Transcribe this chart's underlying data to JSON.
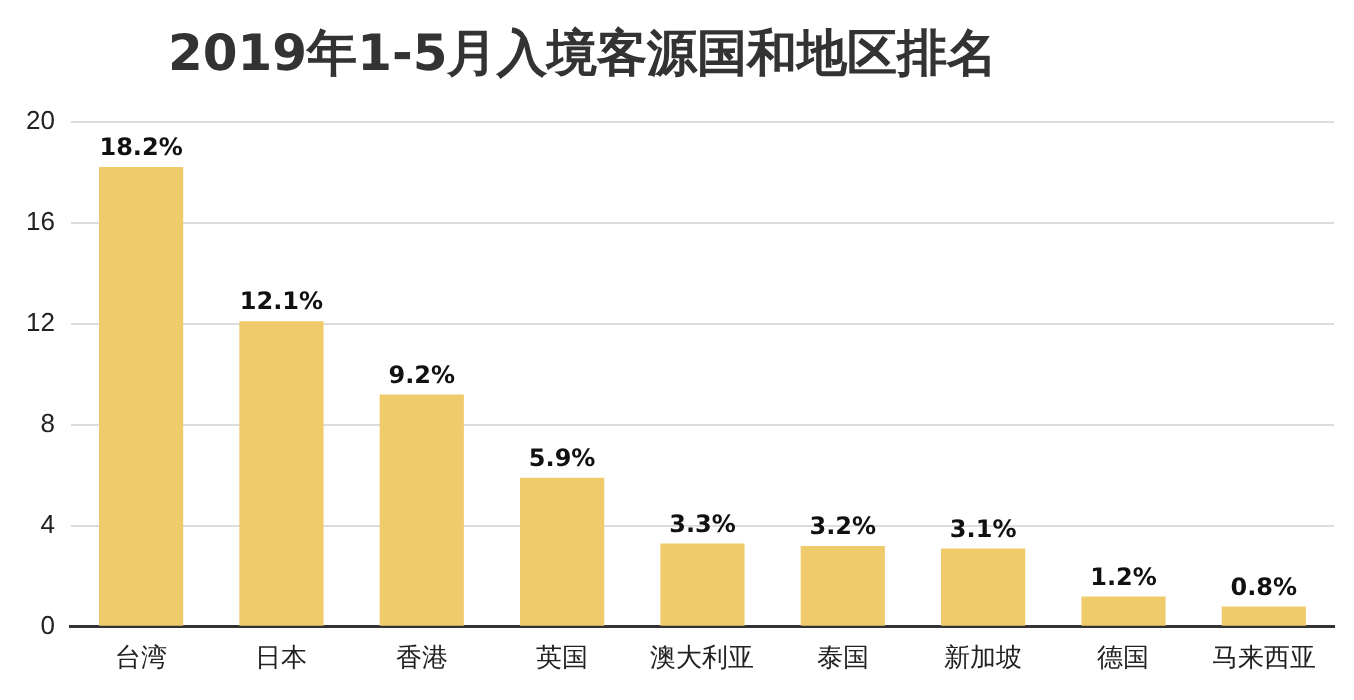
{
  "chart_data": {
    "type": "bar",
    "title": "2019年1-5月入境客源国和地区排名",
    "categories": [
      "台湾",
      "日本",
      "香港",
      "英国",
      "澳大利亚",
      "泰国",
      "新加坡",
      "德国",
      "马来西亚"
    ],
    "values": [
      18.2,
      12.1,
      9.2,
      5.9,
      3.3,
      3.2,
      3.1,
      1.2,
      0.8
    ],
    "value_labels": [
      "18.2%",
      "12.1%",
      "9.2%",
      "5.9%",
      "3.3%",
      "3.2%",
      "3.1%",
      "1.2%",
      "0.8%"
    ],
    "color": "#f0cb6c",
    "ylim": [
      0,
      20
    ],
    "yticks": [
      0,
      4,
      8,
      12,
      16,
      20
    ],
    "grid": "y",
    "legend": false
  }
}
